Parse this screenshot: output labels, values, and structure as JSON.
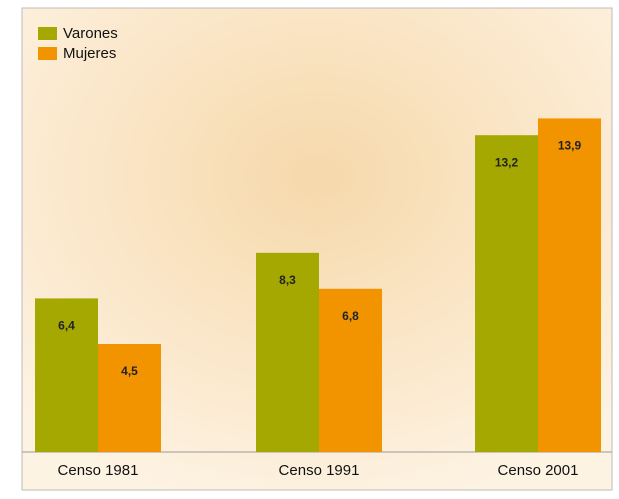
{
  "chart_data": {
    "type": "bar",
    "categories": [
      "Censo 1981",
      "Censo 1991",
      "Censo 2001"
    ],
    "series": [
      {
        "name": "Varones",
        "color": "#a5a800",
        "values": [
          6.4,
          8.3,
          13.2
        ],
        "value_labels": [
          "6,4",
          "8,3",
          "13,2"
        ]
      },
      {
        "name": "Mujeres",
        "color": "#f29400",
        "values": [
          4.5,
          6.8,
          13.9
        ],
        "value_labels": [
          "4,5",
          "6,8",
          "13,9"
        ]
      }
    ],
    "legend": "top-left"
  }
}
